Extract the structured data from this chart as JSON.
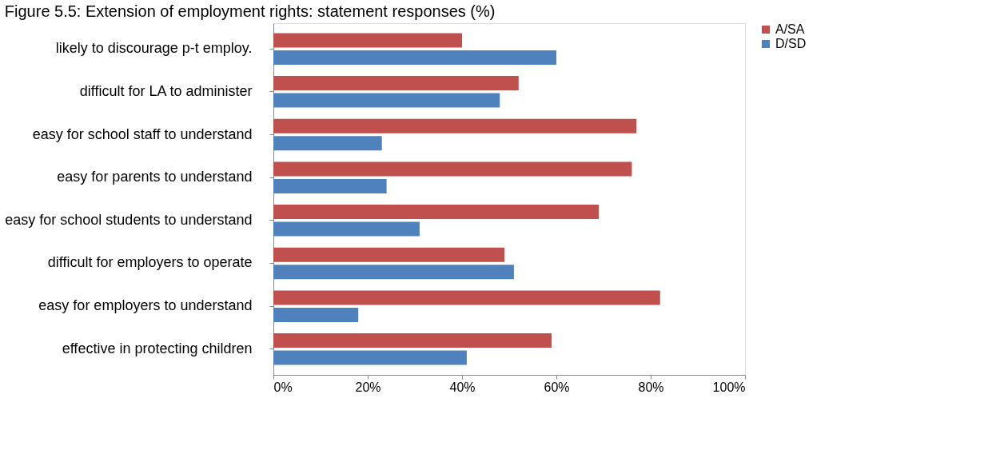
{
  "chart_data": {
    "type": "bar",
    "orientation": "horizontal",
    "title": "Figure 5.5: Extension of employment rights: statement responses (%)",
    "categories": [
      "likely to discourage p-t employ.",
      "difficult for LA to administer",
      "easy for school staff to understand",
      "easy for parents to understand",
      "easy for school students to understand",
      "difficult for employers to operate",
      "easy for employers to understand",
      "effective in protecting children"
    ],
    "series": [
      {
        "name": "A/SA",
        "color": "#c0504d",
        "values": [
          40,
          52,
          77,
          76,
          69,
          49,
          82,
          59
        ]
      },
      {
        "name": "D/SD",
        "color": "#4f81bd",
        "values": [
          60,
          48,
          23,
          24,
          31,
          51,
          18,
          41
        ]
      }
    ],
    "xlim": [
      0,
      100
    ],
    "xticks": [
      {
        "value": 0,
        "label": "0%"
      },
      {
        "value": 20,
        "label": "20%"
      },
      {
        "value": 40,
        "label": "40%"
      },
      {
        "value": 60,
        "label": "60%"
      },
      {
        "value": 80,
        "label": "80%"
      },
      {
        "value": 100,
        "label": "100%"
      }
    ],
    "grid": false,
    "legend": "right"
  }
}
